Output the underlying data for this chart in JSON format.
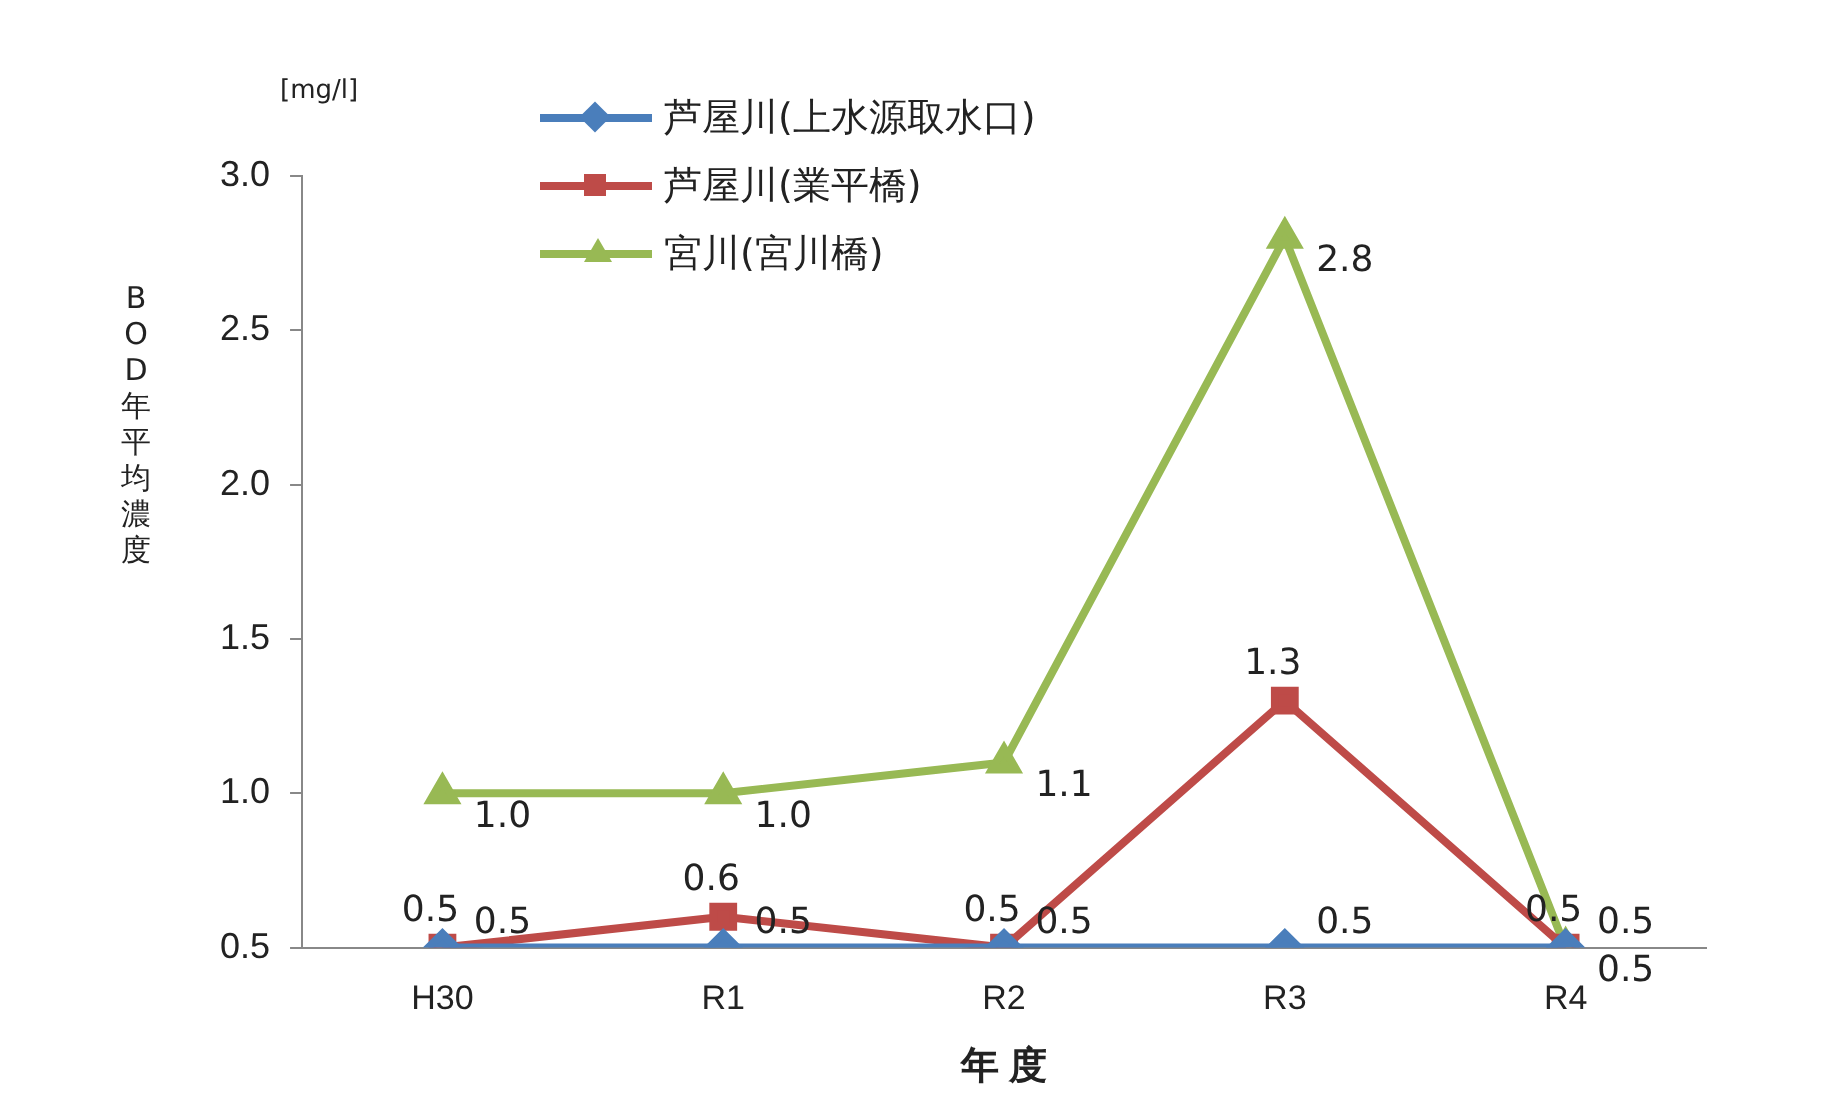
{
  "chart_data": {
    "type": "line",
    "ylabel": "BOD年平均濃度",
    "xlabel": "年 度",
    "annotations": [
      "[mg/l]"
    ],
    "categories": [
      "H30",
      "R1",
      "R2",
      "R3",
      "R4"
    ],
    "ylim": [
      0.5,
      3.0
    ],
    "yticks": [
      0.5,
      {
        "value": 1,
        "label": "1.0"
      },
      1.5,
      {
        "value": 2,
        "label": "2.0"
      },
      2.5,
      {
        "value": 3,
        "label": "3.0"
      }
    ],
    "grid": false,
    "legend": "top left",
    "line_style": "solid",
    "series": [
      {
        "name": "芦屋川(上水源取水口)",
        "color": "#4a7ebb",
        "marker": "diamond",
        "values": [
          0.5,
          0.5,
          0.5,
          0.5,
          0.5
        ],
        "value_labels": [
          "0.5",
          "0.5",
          "0.5",
          "0.5",
          "0.5"
        ]
      },
      {
        "name": "芦屋川(業平橋)",
        "color": "#be4b48",
        "marker": "square",
        "values": [
          0.5,
          0.6,
          0.5,
          1.3,
          0.5
        ],
        "value_labels": [
          "0.5",
          "0.6",
          "0.5",
          "1.3",
          "0.5"
        ]
      },
      {
        "name": "宮川(宮川橋)",
        "color": "#98b954",
        "marker": "triangle",
        "values": [
          1.0,
          1.0,
          1.1,
          2.8,
          0.5
        ],
        "value_labels": [
          "1.0",
          "1.0",
          "1.1",
          "2.8",
          "0.5"
        ]
      }
    ]
  }
}
